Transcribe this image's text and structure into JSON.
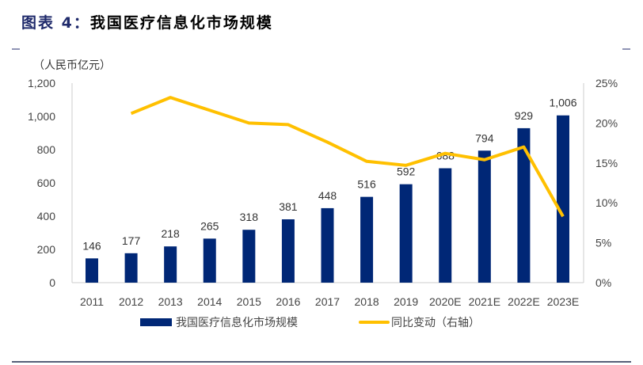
{
  "header": {
    "figure_label": "图表 4：",
    "title": "我国医疗信息化市场规模"
  },
  "chart_data": {
    "type": "bar+line",
    "title": "我国医疗信息化市场规模",
    "ylabel": "（人民币亿元）",
    "categories": [
      "2011",
      "2012",
      "2013",
      "2014",
      "2015",
      "2016",
      "2017",
      "2018",
      "2019",
      "2020E",
      "2021E",
      "2022E",
      "2023E"
    ],
    "series": [
      {
        "name": "我国医疗信息化市场规模",
        "type": "bar",
        "axis": "left",
        "color": "#002776",
        "values": [
          146,
          177,
          218,
          265,
          318,
          381,
          448,
          516,
          592,
          688,
          794,
          929,
          1006
        ],
        "labels": [
          "146",
          "177",
          "218",
          "265",
          "318",
          "381",
          "448",
          "516",
          "592",
          "688",
          "794",
          "929",
          "1,006"
        ]
      },
      {
        "name": "同比变动（右轴）",
        "type": "line",
        "axis": "right",
        "color": "#FFC000",
        "values": [
          null,
          21.2,
          23.2,
          21.6,
          20.0,
          19.8,
          17.6,
          15.2,
          14.7,
          16.2,
          15.4,
          17.0,
          8.3
        ]
      }
    ],
    "yleft": {
      "range": [
        0,
        1200
      ],
      "ticks": [
        "0",
        "200",
        "400",
        "600",
        "800",
        "1,000",
        "1,200"
      ]
    },
    "yright": {
      "range": [
        0,
        25
      ],
      "ticks": [
        "0%",
        "5%",
        "10%",
        "15%",
        "20%",
        "25%"
      ]
    },
    "grid": false,
    "legend": "bottom"
  }
}
